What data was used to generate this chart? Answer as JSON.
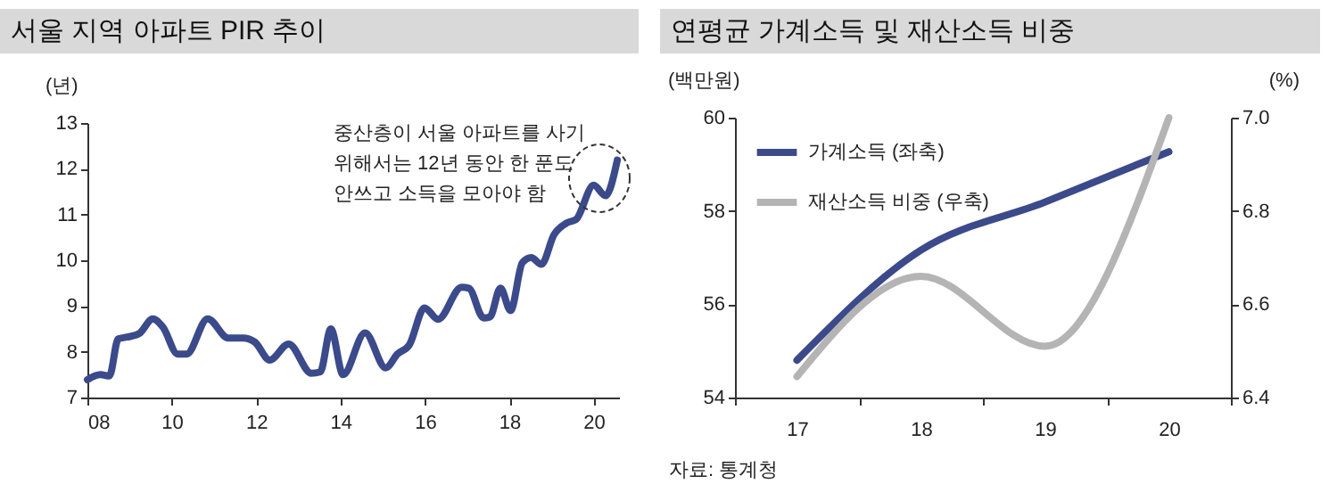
{
  "chart_data": [
    {
      "type": "line",
      "title": "서울 지역 아파트 PIR 추이",
      "ylabel": "(년)",
      "x": [
        2008.0,
        2008.31,
        2008.52,
        2008.73,
        2008.94,
        2009.23,
        2009.55,
        2009.79,
        2010.14,
        2010.35,
        2010.85,
        2011.34,
        2011.69,
        2011.97,
        2012.32,
        2012.77,
        2013.31,
        2013.52,
        2013.77,
        2014.06,
        2014.58,
        2015.07,
        2015.35,
        2015.63,
        2015.99,
        2016.31,
        2016.87,
        2017.04,
        2017.39,
        2017.54,
        2017.79,
        2018.03,
        2018.31,
        2018.52,
        2018.76,
        2019.06,
        2019.37,
        2019.58,
        2020.0,
        2020.28,
        2020.56
      ],
      "values": [
        7.39,
        7.5,
        7.47,
        8.28,
        8.32,
        8.4,
        8.72,
        8.54,
        7.95,
        7.95,
        8.72,
        8.3,
        8.3,
        8.21,
        7.82,
        8.17,
        7.53,
        7.56,
        8.5,
        7.5,
        8.41,
        7.65,
        7.95,
        8.15,
        8.96,
        8.71,
        9.41,
        9.39,
        8.74,
        8.76,
        9.39,
        8.9,
        9.95,
        10.06,
        9.91,
        10.56,
        10.82,
        10.89,
        11.64,
        11.41,
        12.19
      ],
      "color": "#3b4a8a",
      "xlim": [
        2008,
        2020.6
      ],
      "xticks": [
        {
          "value": 2008,
          "label": "08"
        },
        {
          "value": 2010,
          "label": "10"
        },
        {
          "value": 2012,
          "label": "12"
        },
        {
          "value": 2014,
          "label": "14"
        },
        {
          "value": 2016,
          "label": "16"
        },
        {
          "value": 2018,
          "label": "18"
        },
        {
          "value": 2020,
          "label": "20"
        }
      ],
      "ylim": [
        7,
        13
      ],
      "yticks": [
        7,
        8,
        9,
        10,
        11,
        12,
        13
      ],
      "annotations": [
        "중산층이 서울 아파트를 사기\n위해서는 12년 동안 한 푼도\n안쓰고 소득을 모아야 함"
      ]
    },
    {
      "type": "line",
      "title": "연평균 가계소득 및 재산소득 비중",
      "ylabel": "(백만원)",
      "y2label": "(%)",
      "categories": [
        "17",
        "18",
        "19",
        "20"
      ],
      "series": [
        {
          "name": "가계소득 (좌축)",
          "color": "#3b4a8a",
          "values": [
            54.8,
            57.16,
            58.19,
            59.27
          ]
        },
        {
          "name": "재산소득 비중 (우축)",
          "color": "#b4b4b4",
          "values": [
            6.445,
            6.66,
            6.51,
            7.0
          ],
          "axis": "y2"
        }
      ],
      "ylim": [
        54,
        60
      ],
      "yticks": [
        54,
        56,
        58,
        60
      ],
      "y2lim": [
        6.4,
        7.0
      ],
      "y2ticks": [
        6.4,
        6.6,
        6.8,
        {
          "value": 7.0,
          "label": "7.0"
        }
      ],
      "legend": "top left",
      "annotations": [
        "자료: 통계청"
      ]
    }
  ]
}
